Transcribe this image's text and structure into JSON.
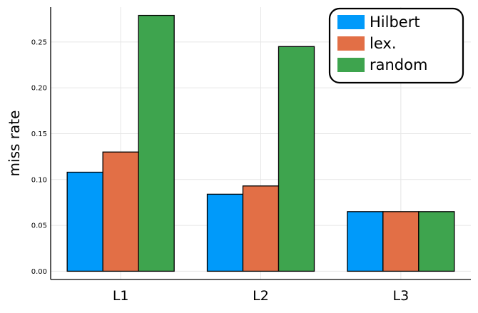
{
  "chart_data": {
    "type": "bar",
    "title": "",
    "xlabel": "",
    "ylabel": "miss rate",
    "categories": [
      "L1",
      "L2",
      "L3"
    ],
    "series": [
      {
        "name": "Hilbert",
        "color": "#009AFA",
        "values": [
          0.108,
          0.084,
          0.065
        ]
      },
      {
        "name": "lex.",
        "color": "#E26F46",
        "values": [
          0.13,
          0.093,
          0.065
        ]
      },
      {
        "name": "random",
        "color": "#3EA44E",
        "values": [
          0.279,
          0.245,
          0.065
        ]
      }
    ],
    "yticks": [
      "0.00",
      "0.05",
      "0.10",
      "0.15",
      "0.20",
      "0.25"
    ],
    "ylim": [
      -0.009,
      0.288
    ],
    "grid": true,
    "legend_position": "top-right"
  }
}
